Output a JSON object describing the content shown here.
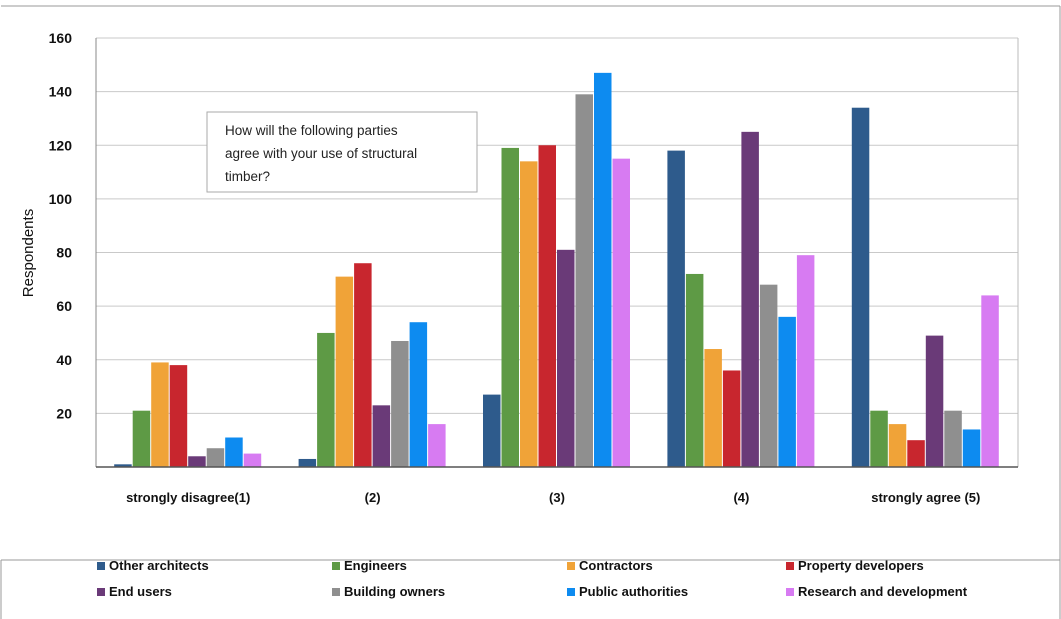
{
  "chart_data": {
    "type": "bar",
    "categories": [
      "strongly disagree(1)",
      "(2)",
      "(3)",
      "(4)",
      "strongly agree (5)"
    ],
    "ylabel": "Respondents",
    "ylim": [
      0,
      160
    ],
    "yticks": [
      "20",
      "40",
      "60",
      "80",
      "100",
      "120",
      "140",
      "160"
    ],
    "annotation": [
      "How will the following parties",
      "agree with your use of structural",
      "timber?"
    ],
    "grid": true,
    "legend_position": "bottom",
    "series": [
      {
        "name": "Other architects",
        "color": "#2e5b8c",
        "values": [
          1,
          3,
          27,
          118,
          134
        ]
      },
      {
        "name": "Engineers",
        "color": "#5e9a45",
        "values": [
          21,
          50,
          119,
          72,
          21
        ]
      },
      {
        "name": "Contractors",
        "color": "#f0a338",
        "values": [
          39,
          71,
          114,
          44,
          16
        ]
      },
      {
        "name": "Property developers",
        "color": "#c8262e",
        "values": [
          38,
          76,
          120,
          36,
          10
        ]
      },
      {
        "name": "End users",
        "color": "#6a3a78",
        "values": [
          4,
          23,
          81,
          125,
          49
        ]
      },
      {
        "name": "Building owners",
        "color": "#8f8f8f",
        "values": [
          7,
          47,
          139,
          68,
          21
        ]
      },
      {
        "name": "Public authorities",
        "color": "#0d8bf0",
        "values": [
          11,
          54,
          147,
          56,
          14
        ]
      },
      {
        "name": "Research and development",
        "color": "#d77bf2",
        "values": [
          5,
          16,
          115,
          79,
          64
        ]
      }
    ]
  }
}
